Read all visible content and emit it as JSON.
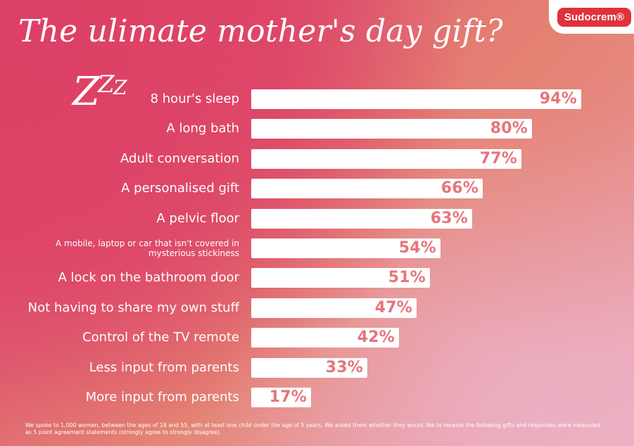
{
  "brand": {
    "name": "Sudocrem®"
  },
  "title": "The ulimate mother's day gift?",
  "decor": {
    "zzz": [
      "Z",
      "Z",
      "Z"
    ]
  },
  "footnote": "We spoke to 1,000 women, between the ages of 18 and 55, with at least one child under the age of 5 years. We asked them whether they would like to receive the following gifts and responses were measured as 5 point agreement statements (strongly agree to strongly disagree).",
  "colors": {
    "bar_fill": "#ffffff",
    "value_text": "#e7747a",
    "brand_red": "#e0323b"
  },
  "chart_data": {
    "type": "bar",
    "orientation": "horizontal",
    "categories": [
      "8 hour's sleep",
      "A long bath",
      "Adult conversation",
      "A personalised gift",
      "A pelvic floor",
      "A mobile, laptop or car that isn't covered in mysterious stickiness",
      "A lock on the bathroom door",
      "Not having to share my own stuff",
      "Control of the TV remote",
      "Less input from parents",
      "More input from parents"
    ],
    "values": [
      94,
      80,
      77,
      66,
      63,
      54,
      51,
      47,
      42,
      33,
      17
    ],
    "value_labels": [
      "94%",
      "80%",
      "77%",
      "66%",
      "63%",
      "54%",
      "51%",
      "47%",
      "42%",
      "33%",
      "17%"
    ],
    "xlim": [
      0,
      100
    ]
  }
}
